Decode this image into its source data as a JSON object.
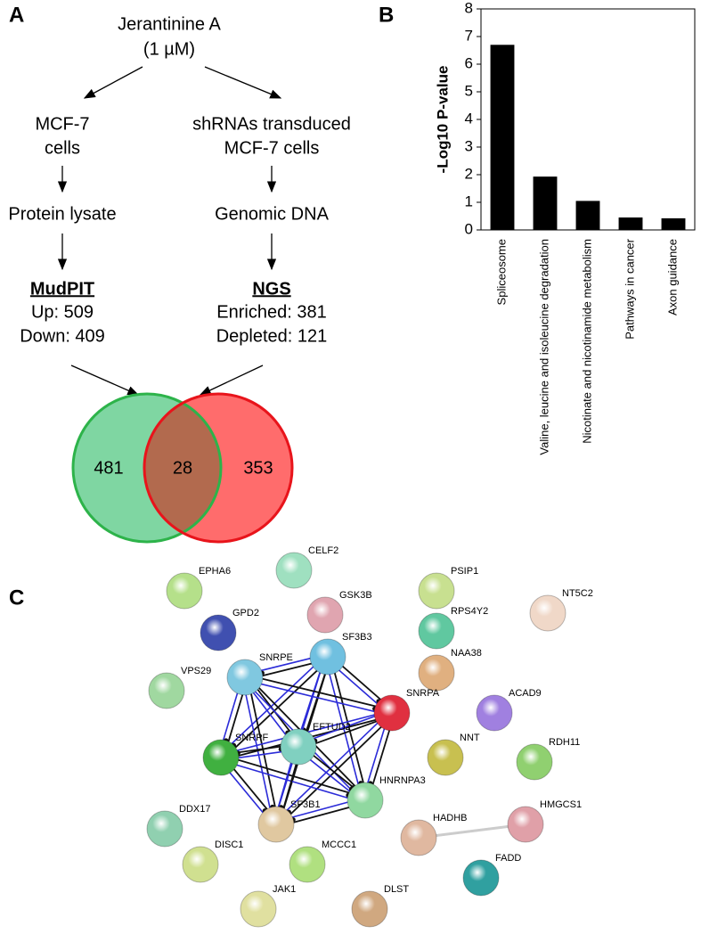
{
  "panel_a": {
    "label": "A",
    "treatment": [
      "Jerantinine A",
      "(1 µM)"
    ],
    "left": {
      "sample": [
        "MCF-7",
        "cells"
      ],
      "material": "Protein lysate",
      "method": "MudPIT",
      "results": [
        "Up: 509",
        "Down: 409"
      ]
    },
    "right": {
      "sample": [
        "shRNAs transduced",
        "MCF-7 cells"
      ],
      "material": "Genomic DNA",
      "method": "NGS",
      "results": [
        "Enriched: 381",
        "Depleted: 121"
      ]
    },
    "venn": {
      "left": 481,
      "both": 28,
      "right": 353
    }
  },
  "chart_data": {
    "type": "bar",
    "panel_label": "B",
    "y_label": "-Log10 P-value",
    "categories": [
      "Spliceosome",
      "Valine, leucine and isoleucine degradation",
      "Nicotinate and nicotinamide metabolism",
      "Pathways in cancer",
      "Axon guidance"
    ],
    "values": [
      6.7,
      1.93,
      1.05,
      0.45,
      0.42
    ],
    "color": "#000000",
    "ylim": [
      0,
      8
    ],
    "yticks": [
      0,
      1,
      2,
      3,
      4,
      5,
      6,
      7,
      8
    ]
  },
  "panel_c": {
    "label": "C",
    "nodes": [
      {
        "label": "EPHA6",
        "color": "#b5e08a"
      },
      {
        "label": "CELF2",
        "color": "#9fe0c0"
      },
      {
        "label": "GSK3B",
        "color": "#e0a5b0"
      },
      {
        "label": "PSIP1",
        "color": "#c8e090"
      },
      {
        "label": "NT5C2",
        "color": "#f0d8c8"
      },
      {
        "label": "GPD2",
        "color": "#4050b0"
      },
      {
        "label": "RPS4Y2",
        "color": "#60c8a0"
      },
      {
        "label": "SF3B3",
        "color": "#70c0e0"
      },
      {
        "label": "SNRPE",
        "color": "#80c8e0"
      },
      {
        "label": "NAA38",
        "color": "#e0b080"
      },
      {
        "label": "VPS29",
        "color": "#a0d8a0"
      },
      {
        "label": "SNRPA",
        "color": "#e03040"
      },
      {
        "label": "ACAD9",
        "color": "#a080e0"
      },
      {
        "label": "SNRPF",
        "color": "#40b040"
      },
      {
        "label": "EFTUD2",
        "color": "#80d0c0"
      },
      {
        "label": "NNT",
        "color": "#c8c050"
      },
      {
        "label": "RDH11",
        "color": "#90d070"
      },
      {
        "label": "HNRNPA3",
        "color": "#90d8a0"
      },
      {
        "label": "DDX17",
        "color": "#90d0b0"
      },
      {
        "label": "SF3B1",
        "color": "#e0c8a0"
      },
      {
        "label": "HADHB",
        "color": "#e0b8a0"
      },
      {
        "label": "HMGCS1",
        "color": "#e0a0a8"
      },
      {
        "label": "DISC1",
        "color": "#d0e090"
      },
      {
        "label": "MCCC1",
        "color": "#b0e080"
      },
      {
        "label": "FADD",
        "color": "#30a0a0"
      },
      {
        "label": "JAK1",
        "color": "#e0e0a0"
      },
      {
        "label": "DLST",
        "color": "#d0a880"
      }
    ]
  }
}
